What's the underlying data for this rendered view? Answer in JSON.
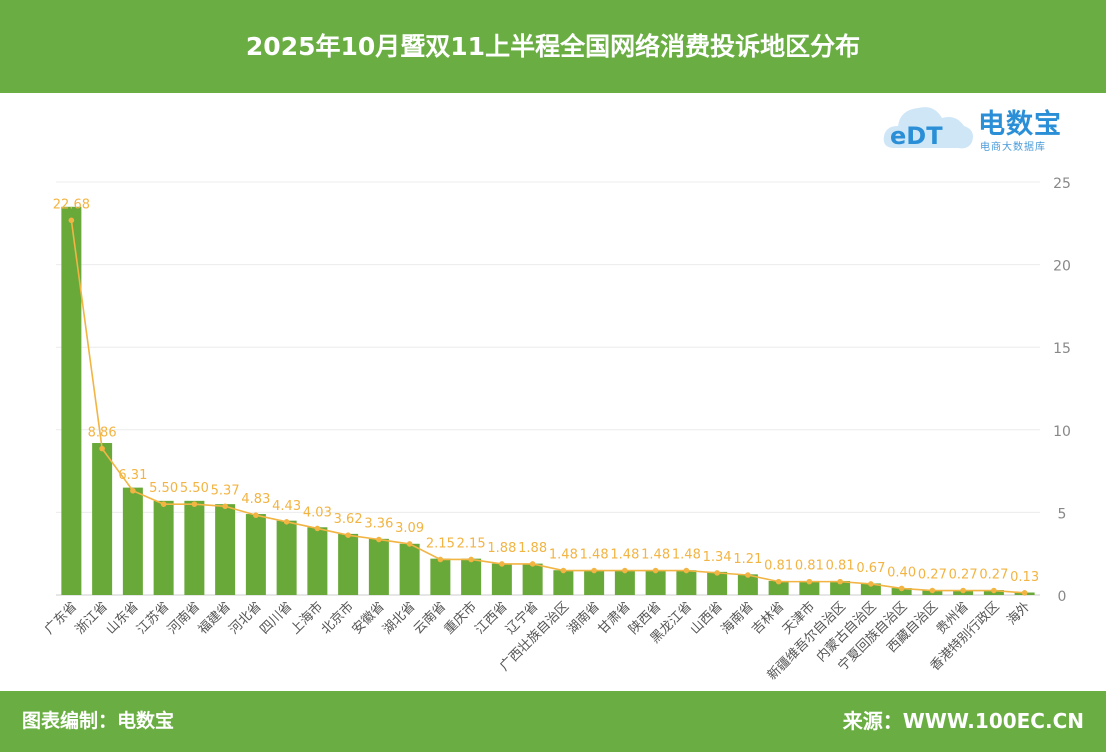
{
  "header": {
    "title": "2025年10月暨双11上半程全国网络消费投诉地区分布"
  },
  "logo": {
    "brand": "电数宝",
    "subtitle": "电商大数据库",
    "icon": "cloud-edt-logo"
  },
  "footer": {
    "credit": "图表编制：电数宝",
    "source": "来源：WWW.100EC.CN"
  },
  "colors": {
    "bar": "#69a93a",
    "line": "#f2b443",
    "label": "#f2b443",
    "header": "#6aae43"
  },
  "chart_data": {
    "type": "bar",
    "title": "2025年10月暨双11上半程全国网络消费投诉地区分布",
    "categories": [
      "广东省",
      "浙江省",
      "山东省",
      "江苏省",
      "河南省",
      "福建省",
      "河北省",
      "四川省",
      "上海市",
      "北京市",
      "安徽省",
      "湖北省",
      "云南省",
      "重庆市",
      "江西省",
      "辽宁省",
      "广西壮族自治区",
      "湖南省",
      "甘肃省",
      "陕西省",
      "黑龙江省",
      "山西省",
      "海南省",
      "吉林省",
      "天津市",
      "新疆维吾尔自治区",
      "内蒙古自治区",
      "宁夏回族自治区",
      "西藏自治区",
      "贵州省",
      "香港特别行政区",
      "海外"
    ],
    "series": [
      {
        "type": "bar",
        "values": [
          23.5,
          9.2,
          6.5,
          5.7,
          5.7,
          5.5,
          4.9,
          4.5,
          4.1,
          3.7,
          3.4,
          3.1,
          2.2,
          2.2,
          1.9,
          1.9,
          1.5,
          1.5,
          1.5,
          1.5,
          1.5,
          1.4,
          1.25,
          0.85,
          0.85,
          0.85,
          0.7,
          0.42,
          0.3,
          0.3,
          0.3,
          0.15
        ]
      },
      {
        "type": "line",
        "values": [
          22.68,
          8.86,
          6.31,
          5.5,
          5.5,
          5.37,
          4.83,
          4.43,
          4.03,
          3.62,
          3.36,
          3.09,
          2.15,
          2.15,
          1.88,
          1.88,
          1.48,
          1.48,
          1.48,
          1.48,
          1.48,
          1.34,
          1.21,
          0.81,
          0.81,
          0.81,
          0.67,
          0.4,
          0.27,
          0.27,
          0.27,
          0.13
        ]
      }
    ],
    "data_labels": [
      "22.68",
      "8.86",
      "6.31",
      "5.50",
      "5.50",
      "5.37",
      "4.83",
      "4.43",
      "4.03",
      "3.62",
      "3.36",
      "3.09",
      "2.15",
      "2.15",
      "1.88",
      "1.88",
      "1.48",
      "1.48",
      "1.48",
      "1.48",
      "1.48",
      "1.34",
      "1.21",
      "0.81",
      "0.81",
      "0.81",
      "0.67",
      "0.40",
      "0.27",
      "0.27",
      "0.27",
      "0.13"
    ],
    "y_ticks": [
      "0",
      "5",
      "10",
      "15",
      "20",
      "25"
    ],
    "ylim": [
      0,
      25
    ],
    "y_axis_position": "right",
    "grid": true,
    "legend": "none"
  }
}
